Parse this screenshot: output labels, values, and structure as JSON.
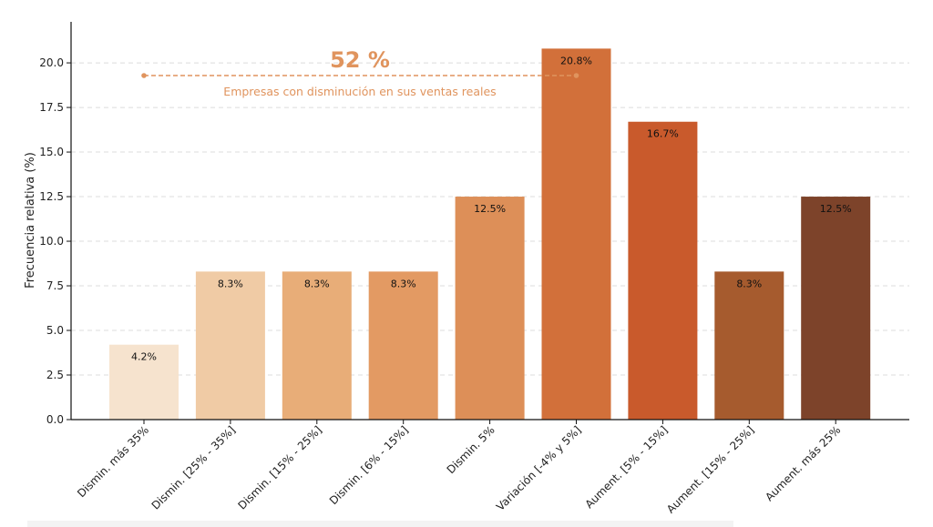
{
  "chart_data": {
    "type": "bar",
    "title": "",
    "xlabel": "",
    "ylabel": "Frecuencia relativa (%)",
    "ylim": [
      0,
      22.3
    ],
    "yticks": [
      "0.0",
      "2.5",
      "5.0",
      "7.5",
      "10.0",
      "12.5",
      "15.0",
      "17.5",
      "20.0"
    ],
    "grid": "horizontal dashed",
    "categories": [
      "Dismin. más 35%",
      "Dismin. [25% - 35%]",
      "Dismin. [15% - 25%]",
      "Dismin. [6% - 15%]",
      "Dismin. 5%",
      "Variación [-4% y 5%]",
      "Aument. [5% - 15%]",
      "Aument. [15% - 25%]",
      "Aument. más 25%"
    ],
    "values": [
      4.2,
      8.3,
      8.3,
      8.3,
      12.5,
      20.8,
      16.7,
      8.3,
      12.5
    ],
    "data_labels": [
      "4.2%",
      "8.3%",
      "8.3%",
      "8.3%",
      "12.5%",
      "20.8%",
      "16.7%",
      "8.3%",
      "12.5%"
    ],
    "colors": [
      "#F6E3CE",
      "#F0CBA5",
      "#E8AD78",
      "#E39A63",
      "#DD8F58",
      "#D2703A",
      "#C95A2C",
      "#A65B2E",
      "#7D432A"
    ],
    "annotation": {
      "headline": "52 %",
      "caption": "Empresas con disminución en sus ventas reales",
      "color": "#E0945E",
      "span_categories": [
        0,
        5
      ]
    }
  }
}
